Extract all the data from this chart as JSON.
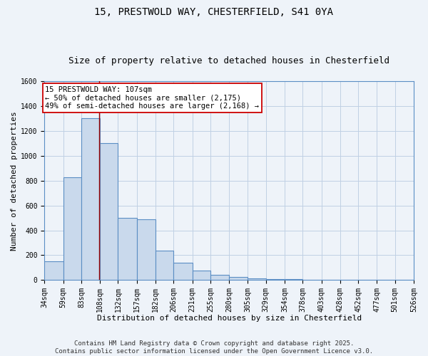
{
  "title_line1": "15, PRESTWOLD WAY, CHESTERFIELD, S41 0YA",
  "title_line2": "Size of property relative to detached houses in Chesterfield",
  "xlabel": "Distribution of detached houses by size in Chesterfield",
  "ylabel": "Number of detached properties",
  "bin_edges": [
    34,
    59,
    83,
    108,
    132,
    157,
    182,
    206,
    231,
    255,
    280,
    305,
    329,
    354,
    378,
    403,
    428,
    452,
    477,
    501,
    526
  ],
  "bar_heights": [
    150,
    825,
    1300,
    1100,
    500,
    490,
    235,
    140,
    75,
    40,
    25,
    15,
    8,
    5,
    3,
    2,
    1,
    1,
    1,
    0
  ],
  "bar_color": "#c9d9ec",
  "bar_edge_color": "#5b8ec4",
  "bar_edge_width": 0.8,
  "grid_color": "#c0d0e4",
  "bg_color": "#eef3f9",
  "red_line_x": 107,
  "red_line_color": "#990000",
  "annotation_line1": "15 PRESTWOLD WAY: 107sqm",
  "annotation_line2": "← 50% of detached houses are smaller (2,175)",
  "annotation_line3": "49% of semi-detached houses are larger (2,168) →",
  "annotation_box_facecolor": "#ffffff",
  "annotation_box_edgecolor": "#cc0000",
  "ylim": [
    0,
    1600
  ],
  "yticks": [
    0,
    200,
    400,
    600,
    800,
    1000,
    1200,
    1400,
    1600
  ],
  "footer_line1": "Contains HM Land Registry data © Crown copyright and database right 2025.",
  "footer_line2": "Contains public sector information licensed under the Open Government Licence v3.0.",
  "title_fontsize": 10,
  "subtitle_fontsize": 9,
  "axis_label_fontsize": 8,
  "tick_fontsize": 7,
  "annotation_fontsize": 7.5,
  "footer_fontsize": 6.5
}
